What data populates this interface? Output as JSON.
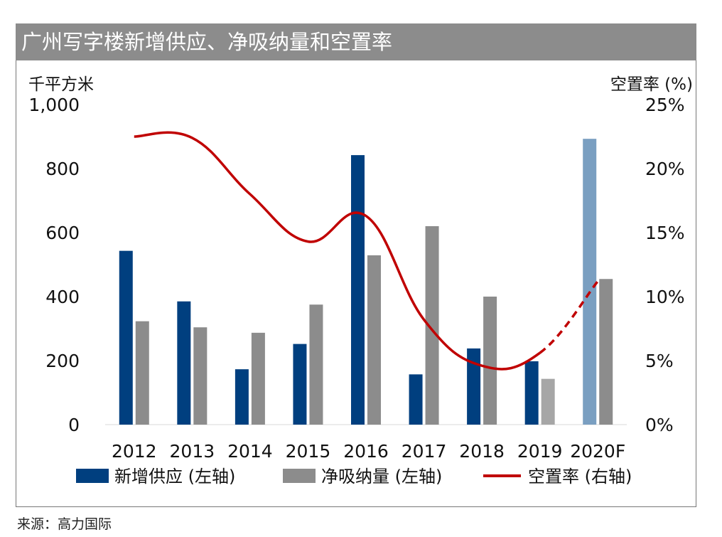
{
  "title": "广州写字楼新增供应、净吸纳量和空置率",
  "source": "来源：高力国际",
  "chart_data": {
    "type": "bar",
    "categories": [
      "2012",
      "2013",
      "2014",
      "2015",
      "2016",
      "2017",
      "2018",
      "2019",
      "2020F"
    ],
    "y_left_label": "千平方米",
    "y_right_label": "空置率 (%)",
    "y_left_ticks": [
      "1,000",
      "800",
      "600",
      "400",
      "200",
      "0"
    ],
    "y_right_ticks": [
      "25%",
      "20%",
      "15%",
      "10%",
      "5%",
      "0%"
    ],
    "ylim_left": [
      0,
      1000
    ],
    "ylim_right": [
      0,
      25
    ],
    "series": [
      {
        "name": "新增供应 (左轴)",
        "type": "bar",
        "axis": "left",
        "color": "#003f7f",
        "forecast_color": "#7a9fc1",
        "values": [
          543,
          385,
          173,
          252,
          842,
          157,
          238,
          198,
          893
        ]
      },
      {
        "name": "净吸纳量 (左轴)",
        "type": "bar",
        "axis": "left",
        "color": "#8c8c8c",
        "values": [
          323,
          304,
          287,
          375,
          529,
          620,
          400,
          143,
          455
        ]
      },
      {
        "name": "空置率 (右轴)",
        "type": "line",
        "axis": "right",
        "color": "#c00000",
        "values": [
          22.5,
          22.4,
          18.0,
          14.3,
          16.3,
          8.2,
          4.6,
          5.6,
          11.2
        ],
        "dashed_from_index": 7
      }
    ],
    "legend_position": "bottom",
    "grid": false
  }
}
